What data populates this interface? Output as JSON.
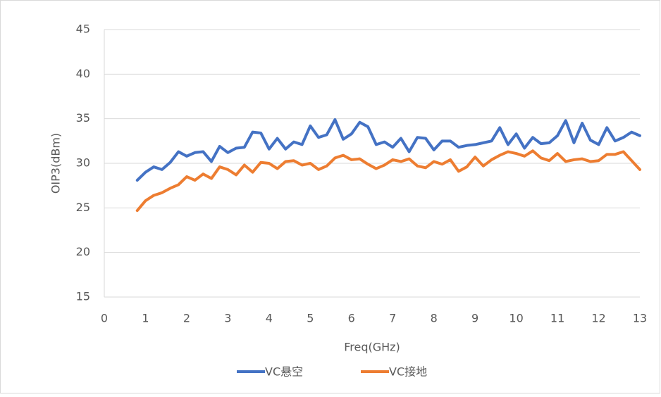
{
  "chart_data": {
    "type": "line",
    "xlabel": "Freq(GHz)",
    "ylabel": "OIP3(dBm)",
    "x": [
      0.8,
      1.0,
      1.2,
      1.4,
      1.6,
      1.8,
      2.0,
      2.2,
      2.4,
      2.6,
      2.8,
      3.0,
      3.2,
      3.4,
      3.6,
      3.8,
      4.0,
      4.2,
      4.4,
      4.6,
      4.8,
      5.0,
      5.2,
      5.4,
      5.6,
      5.8,
      6.0,
      6.2,
      6.4,
      6.6,
      6.8,
      7.0,
      7.2,
      7.4,
      7.6,
      7.8,
      8.0,
      8.2,
      8.4,
      8.6,
      8.8,
      9.0,
      9.2,
      9.4,
      9.6,
      9.8,
      10.0,
      10.2,
      10.4,
      10.6,
      10.8,
      11.0,
      11.2,
      11.4,
      11.6,
      11.8,
      12.0,
      12.2,
      12.4,
      12.6,
      12.8,
      13.0
    ],
    "series": [
      {
        "name": "VC悬空",
        "color": "#4472c4",
        "values": [
          28.1,
          29.0,
          29.6,
          29.3,
          30.1,
          31.3,
          30.8,
          31.2,
          31.3,
          30.2,
          31.9,
          31.2,
          31.7,
          31.8,
          33.5,
          33.4,
          31.6,
          32.8,
          31.6,
          32.4,
          32.1,
          34.2,
          32.9,
          33.2,
          34.9,
          32.7,
          33.3,
          34.6,
          34.1,
          32.1,
          32.4,
          31.8,
          32.8,
          31.3,
          32.9,
          32.8,
          31.5,
          32.5,
          32.5,
          31.8,
          32.0,
          32.1,
          32.3,
          32.5,
          34.0,
          32.1,
          33.3,
          31.7,
          32.9,
          32.2,
          32.3,
          33.1,
          34.8,
          32.3,
          34.5,
          32.6,
          32.1,
          34.0,
          32.5,
          32.9,
          33.5,
          33.1
        ]
      },
      {
        "name": "VC接地",
        "color": "#ed7d31",
        "values": [
          24.7,
          25.8,
          26.4,
          26.7,
          27.2,
          27.6,
          28.5,
          28.1,
          28.8,
          28.3,
          29.6,
          29.3,
          28.7,
          29.8,
          29.0,
          30.1,
          30.0,
          29.4,
          30.2,
          30.3,
          29.8,
          30.0,
          29.3,
          29.7,
          30.6,
          30.9,
          30.4,
          30.5,
          29.9,
          29.4,
          29.8,
          30.4,
          30.2,
          30.5,
          29.7,
          29.5,
          30.2,
          29.9,
          30.4,
          29.1,
          29.6,
          30.7,
          29.7,
          30.4,
          30.9,
          31.3,
          31.1,
          30.8,
          31.4,
          30.6,
          30.3,
          31.1,
          30.2,
          30.4,
          30.5,
          30.2,
          30.3,
          31.0,
          31.0,
          31.3,
          30.3,
          29.3
        ]
      }
    ],
    "xlim": [
      0,
      13
    ],
    "xticks": [
      0,
      1,
      2,
      3,
      4,
      5,
      6,
      7,
      8,
      9,
      10,
      11,
      12,
      13
    ],
    "ylim": [
      15,
      45
    ],
    "yticks": [
      15,
      20,
      25,
      30,
      35,
      40,
      45
    ],
    "grid": true,
    "legend": "bottom"
  }
}
